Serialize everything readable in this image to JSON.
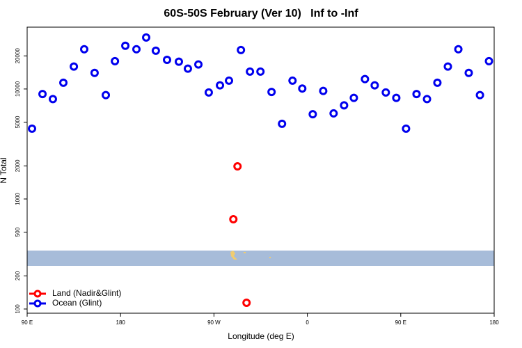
{
  "chart_data": {
    "type": "scatter",
    "title": "60S-50S February (Ver 10)   Inf to -Inf",
    "xlabel": "Longitude (deg E)",
    "ylabel": "N Total",
    "log_y": true,
    "legend": "bottom-left",
    "xlim": [
      90,
      540
    ],
    "xticks": [
      {
        "value": 90,
        "label": "90 E"
      },
      180,
      {
        "value": 270,
        "label": "90 W"
      },
      {
        "value": 360,
        "label": "0"
      },
      {
        "value": 450,
        "label": "90 E"
      },
      {
        "value": 540,
        "label": "180"
      }
    ],
    "ylim": [
      91.6,
      36500
    ],
    "yticks": [
      100,
      200,
      500,
      1000,
      2000,
      5000,
      10000,
      20000
    ],
    "series": [
      {
        "name": "Land (Nadir&Glint)",
        "color": "#ff0000",
        "x": [
          292.7,
          288.7,
          301.4
        ],
        "values": [
          1980,
          655,
          114
        ]
      },
      {
        "name": "Ocean (Glint)",
        "color": "#0000ee",
        "x": [
          94.7,
          104.8,
          114.8,
          124.9,
          135,
          145,
          155,
          165.8,
          174.6,
          184.6,
          195.3,
          204.7,
          214,
          224.8,
          236.2,
          244.9,
          255,
          265,
          275.8,
          284.5,
          296,
          304.7,
          314.8,
          325.5,
          335.6,
          345.7,
          355.1,
          365.2,
          375.3,
          385.3,
          395.4,
          404.8,
          415.5,
          424.9,
          435.6,
          445.7,
          455.1,
          465.2,
          475.3,
          485.3,
          495.4,
          505.5,
          515.5,
          526.3,
          535
        ],
        "values": [
          4360,
          9000,
          8100,
          11400,
          16000,
          23000,
          14000,
          8800,
          17900,
          24700,
          23000,
          29400,
          22300,
          18400,
          17700,
          15300,
          16700,
          9300,
          10800,
          11900,
          22600,
          14400,
          14400,
          9400,
          4830,
          11900,
          10100,
          5900,
          9600,
          6000,
          7100,
          8300,
          12300,
          10800,
          9300,
          8300,
          4360,
          9000,
          8100,
          11400,
          16000,
          23000,
          14000,
          8800,
          17900
        ]
      }
    ]
  }
}
